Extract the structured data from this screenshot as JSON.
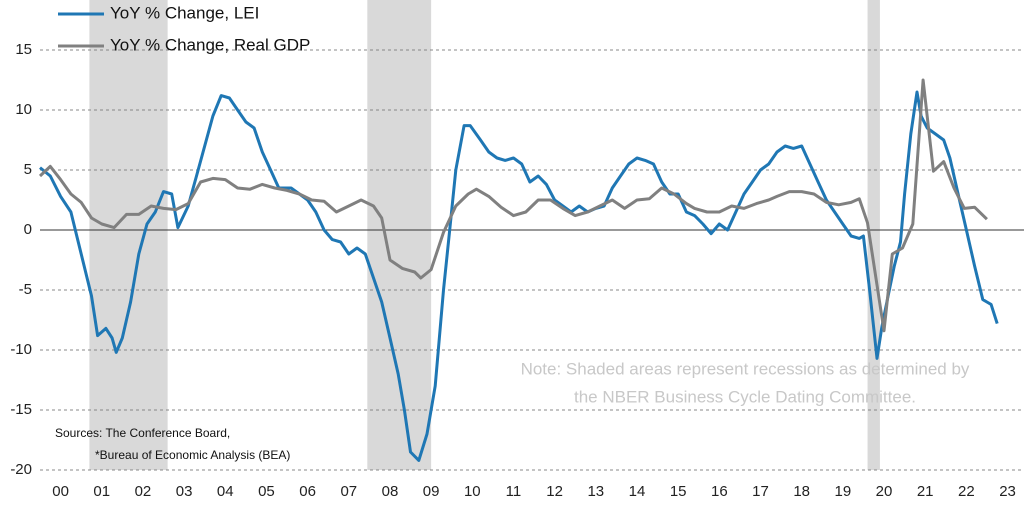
{
  "chart_data": {
    "type": "line",
    "legend": "upper left",
    "note": [
      "Note: Shaded areas represent recessions as determined by",
      "the NBER Business Cycle Dating Committee."
    ],
    "sources": [
      "Sources: The Conference Board,",
      "*Bureau of Economic Analysis (BEA)"
    ],
    "recessions": [
      [
        2001.2,
        1.9
      ],
      [
        2007.95,
        1.55
      ],
      [
        2020.1,
        0.3
      ]
    ],
    "recession_color": "#d9d9d9",
    "xlim": [
      2000,
      2023.9
    ],
    "xticks": [
      {
        "value": 2000.5,
        "label": "00"
      },
      {
        "value": 2001.5,
        "label": "01"
      },
      {
        "value": 2002.5,
        "label": "02"
      },
      {
        "value": 2003.5,
        "label": "03"
      },
      {
        "value": 2004.5,
        "label": "04"
      },
      {
        "value": 2005.5,
        "label": "05"
      },
      {
        "value": 2006.5,
        "label": "06"
      },
      {
        "value": 2007.5,
        "label": "07"
      },
      {
        "value": 2008.5,
        "label": "08"
      },
      {
        "value": 2009.5,
        "label": "09"
      },
      {
        "value": 2010.5,
        "label": "10"
      },
      {
        "value": 2011.5,
        "label": "11"
      },
      {
        "value": 2012.5,
        "label": "12"
      },
      {
        "value": 2013.5,
        "label": "13"
      },
      {
        "value": 2014.5,
        "label": "14"
      },
      {
        "value": 2015.5,
        "label": "15"
      },
      {
        "value": 2016.5,
        "label": "16"
      },
      {
        "value": 2017.5,
        "label": "17"
      },
      {
        "value": 2018.5,
        "label": "18"
      },
      {
        "value": 2019.5,
        "label": "19"
      },
      {
        "value": 2020.5,
        "label": "20"
      },
      {
        "value": 2021.5,
        "label": "21"
      },
      {
        "value": 2022.5,
        "label": "22"
      },
      {
        "value": 2023.5,
        "label": "23"
      }
    ],
    "ylim": [
      -20,
      15
    ],
    "yticks": [
      15,
      10,
      5,
      0,
      -5,
      -10,
      -15,
      -20
    ],
    "grid": true,
    "series": [
      {
        "name": "YoY % Change, LEI",
        "color": "#1f77b4",
        "x": [
          2000.0,
          2000.25,
          2000.5,
          2000.75,
          2001.0,
          2001.25,
          2001.4,
          2001.6,
          2001.75,
          2001.85,
          2002.0,
          2002.2,
          2002.4,
          2002.6,
          2002.8,
          2003.0,
          2003.2,
          2003.35,
          2003.6,
          2003.8,
          2004.0,
          2004.2,
          2004.4,
          2004.6,
          2004.8,
          2005.0,
          2005.2,
          2005.4,
          2005.6,
          2005.8,
          2006.1,
          2006.3,
          2006.5,
          2006.7,
          2006.9,
          2007.1,
          2007.3,
          2007.5,
          2007.7,
          2007.9,
          2008.1,
          2008.3,
          2008.5,
          2008.7,
          2008.85,
          2009.0,
          2009.2,
          2009.4,
          2009.6,
          2009.8,
          2009.95,
          2010.1,
          2010.3,
          2010.45,
          2010.7,
          2010.9,
          2011.1,
          2011.3,
          2011.5,
          2011.7,
          2011.9,
          2012.1,
          2012.3,
          2012.5,
          2012.7,
          2012.9,
          2013.1,
          2013.3,
          2013.5,
          2013.7,
          2013.9,
          2014.1,
          2014.3,
          2014.5,
          2014.7,
          2014.9,
          2015.1,
          2015.3,
          2015.5,
          2015.7,
          2015.9,
          2016.1,
          2016.3,
          2016.5,
          2016.7,
          2016.9,
          2017.1,
          2017.3,
          2017.5,
          2017.7,
          2017.9,
          2018.1,
          2018.3,
          2018.5,
          2018.7,
          2018.9,
          2019.1,
          2019.3,
          2019.5,
          2019.7,
          2019.9,
          2020.0,
          2020.15,
          2020.33,
          2020.45,
          2020.6,
          2020.75,
          2020.9,
          2021.0,
          2021.15,
          2021.3,
          2021.4,
          2021.55,
          2021.75,
          2021.95,
          2022.1,
          2022.3,
          2022.5,
          2022.7,
          2022.9,
          2023.0,
          2023.1,
          2023.25
        ],
        "values": [
          5.2,
          4.5,
          2.8,
          1.5,
          -2,
          -5.5,
          -8.8,
          -8.2,
          -9,
          -10.2,
          -9,
          -6,
          -2,
          0.5,
          1.5,
          3.2,
          3,
          0.2,
          2,
          4.5,
          7,
          9.5,
          11.2,
          11,
          10,
          9,
          8.5,
          6.5,
          5,
          3.5,
          3.5,
          3,
          2.5,
          1.5,
          0,
          -0.8,
          -1,
          -2,
          -1.5,
          -2,
          -4,
          -6,
          -9,
          -12,
          -15,
          -18.5,
          -19.2,
          -17,
          -13,
          -5,
          0,
          5,
          8.7,
          8.7,
          7.5,
          6.5,
          6,
          5.8,
          6,
          5.5,
          4,
          4.5,
          3.8,
          2.5,
          2,
          1.5,
          2,
          1.5,
          1.8,
          2,
          3.5,
          4.5,
          5.5,
          6,
          5.8,
          5.5,
          4,
          3,
          3,
          1.5,
          1.2,
          0.5,
          -0.3,
          0.5,
          0,
          1.5,
          3,
          4,
          5,
          5.5,
          6.5,
          7,
          6.8,
          7,
          5.5,
          4,
          2.5,
          1.5,
          0.5,
          -0.5,
          -0.7,
          -0.5,
          -5,
          -10.7,
          -8,
          -5.5,
          -3,
          -1,
          3,
          8,
          11.5,
          9.5,
          8.5,
          8,
          7.5,
          6,
          3,
          0,
          -3,
          -5.8,
          -6,
          -6.2,
          -7.8
        ]
      },
      {
        "name": "YoY % Change, Real GDP",
        "color": "#808080",
        "x": [
          2000.0,
          2000.25,
          2000.5,
          2000.75,
          2001.0,
          2001.25,
          2001.5,
          2001.8,
          2002.1,
          2002.4,
          2002.7,
          2003.0,
          2003.3,
          2003.6,
          2003.9,
          2004.2,
          2004.5,
          2004.8,
          2005.1,
          2005.4,
          2005.7,
          2006.0,
          2006.3,
          2006.6,
          2006.9,
          2007.2,
          2007.5,
          2007.8,
          2008.1,
          2008.3,
          2008.5,
          2008.8,
          2009.1,
          2009.25,
          2009.5,
          2009.8,
          2010.1,
          2010.4,
          2010.6,
          2010.9,
          2011.2,
          2011.5,
          2011.8,
          2012.1,
          2012.4,
          2012.7,
          2013.0,
          2013.3,
          2013.6,
          2013.9,
          2014.2,
          2014.5,
          2014.8,
          2015.1,
          2015.4,
          2015.7,
          2015.9,
          2016.2,
          2016.5,
          2016.8,
          2017.1,
          2017.4,
          2017.7,
          2017.9,
          2018.2,
          2018.5,
          2018.8,
          2019.1,
          2019.4,
          2019.7,
          2019.9,
          2020.1,
          2020.5,
          2020.7,
          2020.95,
          2021.2,
          2021.45,
          2021.7,
          2021.95,
          2022.2,
          2022.45,
          2022.7,
          2023.0
        ],
        "values": [
          4.5,
          5.3,
          4.2,
          3,
          2.3,
          1,
          0.5,
          0.2,
          1.3,
          1.3,
          2,
          1.8,
          1.7,
          2.2,
          4,
          4.3,
          4.2,
          3.5,
          3.4,
          3.8,
          3.5,
          3.3,
          3,
          2.5,
          2.4,
          1.5,
          2,
          2.5,
          2,
          1,
          -2.5,
          -3.2,
          -3.5,
          -4,
          -3.3,
          -0.2,
          2,
          3,
          3.4,
          2.8,
          1.9,
          1.2,
          1.5,
          2.5,
          2.5,
          1.8,
          1.2,
          1.5,
          2,
          2.5,
          1.8,
          2.5,
          2.6,
          3.5,
          3,
          2.2,
          1.8,
          1.5,
          1.5,
          2,
          1.8,
          2.2,
          2.5,
          2.8,
          3.2,
          3.2,
          3,
          2.3,
          2.1,
          2.3,
          2.6,
          0.6,
          -8.4,
          -2,
          -1.5,
          0.5,
          12.5,
          4.9,
          5.7,
          3.5,
          1.8,
          1.9,
          0.9
        ]
      }
    ]
  }
}
